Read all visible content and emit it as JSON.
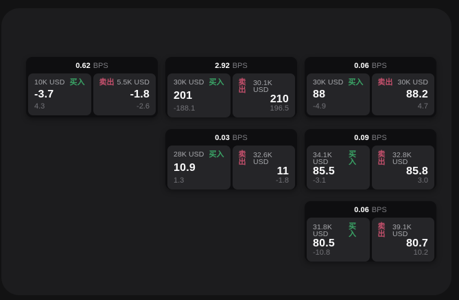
{
  "labels": {
    "bps_suffix": "BPS",
    "buy": "买入",
    "sell": "卖出"
  },
  "colors": {
    "buy_green": "#3aa466",
    "sell_red": "#c4506c",
    "page_bg": "#121213",
    "surface_bg": "#1c1c1e",
    "card_bg": "#0e0e10",
    "panel_bg": "#252528"
  },
  "cards": [
    {
      "bps": "0.62",
      "buy": {
        "notional": "10K USD",
        "value": "-3.7",
        "sub": "4.3"
      },
      "sell": {
        "notional": "5.5K USD",
        "value": "-1.8",
        "sub": "-2.6"
      }
    },
    {
      "bps": "2.92",
      "buy": {
        "notional": "30K USD",
        "value": "201",
        "sub": "-188.1"
      },
      "sell": {
        "notional": "30.1K USD",
        "value": "210",
        "sub": "196.5"
      }
    },
    {
      "bps": "0.06",
      "buy": {
        "notional": "30K USD",
        "value": "88",
        "sub": "-4.9"
      },
      "sell": {
        "notional": "30K USD",
        "value": "88.2",
        "sub": "4.7"
      }
    },
    {
      "bps": "0.03",
      "buy": {
        "notional": "28K USD",
        "value": "10.9",
        "sub": "1.3"
      },
      "sell": {
        "notional": "32.6K USD",
        "value": "11",
        "sub": "-1.8"
      }
    },
    {
      "bps": "0.09",
      "buy": {
        "notional": "34.1K USD",
        "value": "85.5",
        "sub": "-3.1"
      },
      "sell": {
        "notional": "32.8K USD",
        "value": "85.8",
        "sub": "3.0"
      }
    },
    {
      "bps": "0.06",
      "buy": {
        "notional": "31.8K USD",
        "value": "80.5",
        "sub": "-10.8"
      },
      "sell": {
        "notional": "39.1K USD",
        "value": "80.7",
        "sub": "10.2"
      }
    }
  ]
}
